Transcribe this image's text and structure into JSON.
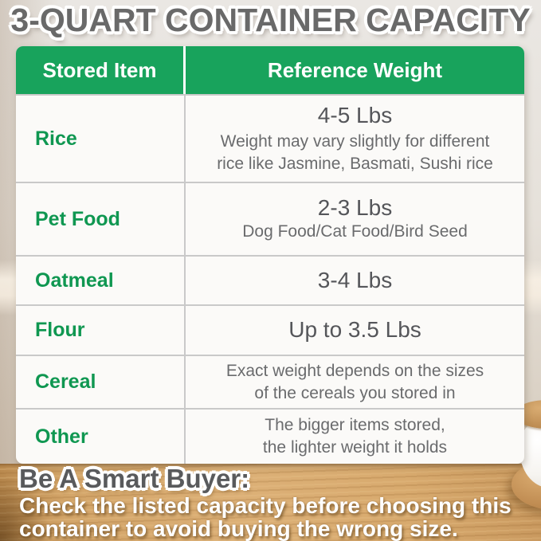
{
  "title": "3-QUART CONTAINER CAPACITY",
  "table": {
    "header": {
      "item": "Stored Item",
      "weight": "Reference Weight"
    },
    "rows": [
      {
        "item": "Rice",
        "weight": "4-5 Lbs",
        "note_line1": "Weight may vary slightly for different",
        "note_line2": "rice like Jasmine, Basmati, Sushi rice"
      },
      {
        "item": "Pet Food",
        "weight": "2-3 Lbs",
        "note_line1": "Dog Food/Cat Food/Bird Seed"
      },
      {
        "item": "Oatmeal",
        "weight": "3-4 Lbs"
      },
      {
        "item": "Flour",
        "weight": "Up to 3.5 Lbs"
      },
      {
        "item": "Cereal",
        "note_line1": "Exact weight depends on the sizes",
        "note_line2": "of the cereals you stored in"
      },
      {
        "item": "Other",
        "note_line1": "The bigger items stored,",
        "note_line2": "the lighter weight it holds"
      }
    ]
  },
  "footer": {
    "heading": "Be A Smart Buyer:",
    "line1": "Check the listed capacity before choosing this",
    "line2": "container to avoid buying the wrong size."
  },
  "colors": {
    "header_green": "#18a35c",
    "item_green": "#0f9751",
    "title_gray": "#696969",
    "value_gray": "#55565a",
    "note_gray": "#6a6b6d",
    "wood_tan": "#d8aa6e"
  }
}
